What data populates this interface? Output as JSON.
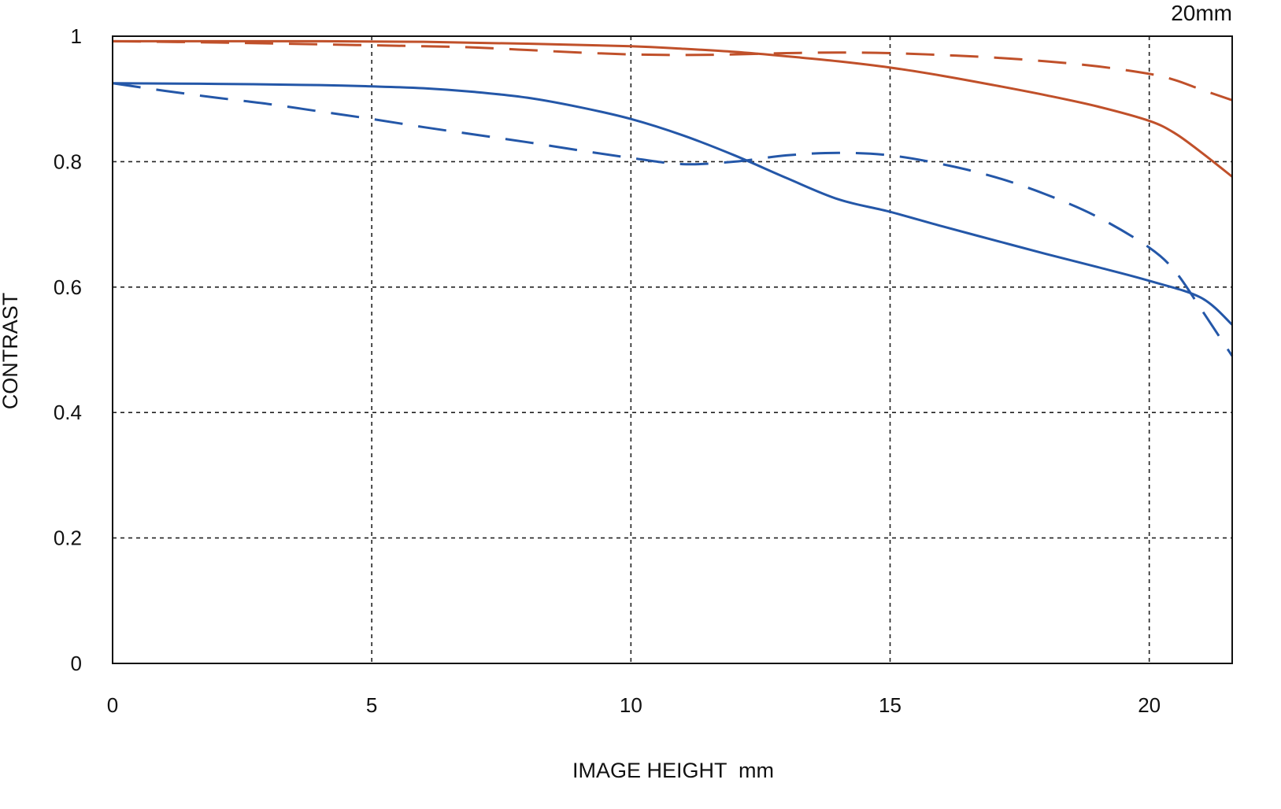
{
  "chart_data": {
    "type": "line",
    "title": "20mm",
    "xlabel": "IMAGE HEIGHT  mm",
    "ylabel": "CONTRAST",
    "xlim": [
      0,
      21.6
    ],
    "ylim": [
      0,
      1
    ],
    "x_ticks": [
      {
        "value": 0,
        "label": "0"
      },
      {
        "value": 5,
        "label": "5"
      },
      {
        "value": 10,
        "label": "10"
      },
      {
        "value": 15,
        "label": "15"
      },
      {
        "value": 20,
        "label": "20"
      }
    ],
    "y_ticks": [
      {
        "value": 0,
        "label": "0"
      },
      {
        "value": 0.2,
        "label": "0.2"
      },
      {
        "value": 0.4,
        "label": "0.4"
      },
      {
        "value": 0.6,
        "label": "0.6"
      },
      {
        "value": 0.8,
        "label": "0.8"
      },
      {
        "value": 1,
        "label": "1"
      }
    ],
    "grid": true,
    "legend": "none",
    "series": [
      {
        "color": "#c0502a",
        "style": "solid",
        "x": [
          0,
          2,
          4,
          6,
          8,
          10,
          11,
          12,
          13,
          14,
          15,
          16,
          17,
          18,
          19,
          20,
          20.5,
          21,
          21.6
        ],
        "y": [
          0.992,
          0.992,
          0.992,
          0.991,
          0.988,
          0.984,
          0.98,
          0.975,
          0.968,
          0.96,
          0.95,
          0.937,
          0.922,
          0.906,
          0.888,
          0.865,
          0.845,
          0.815,
          0.776
        ]
      },
      {
        "color": "#c0502a",
        "style": "dashed",
        "x": [
          0,
          2,
          4,
          6,
          7,
          8,
          9,
          10,
          11,
          12,
          13,
          14,
          15,
          16,
          17,
          18,
          19,
          20,
          20.5,
          21,
          21.6
        ],
        "y": [
          0.992,
          0.99,
          0.987,
          0.984,
          0.982,
          0.978,
          0.974,
          0.971,
          0.97,
          0.971,
          0.973,
          0.974,
          0.973,
          0.97,
          0.966,
          0.96,
          0.952,
          0.94,
          0.93,
          0.915,
          0.898
        ]
      },
      {
        "color": "#2457a8",
        "style": "solid",
        "x": [
          0,
          2,
          4,
          5,
          6,
          7,
          8,
          9,
          10,
          11,
          12,
          13,
          14,
          15,
          16,
          17,
          18,
          19,
          20,
          21,
          21.6
        ],
        "y": [
          0.925,
          0.924,
          0.922,
          0.92,
          0.917,
          0.911,
          0.902,
          0.887,
          0.868,
          0.842,
          0.81,
          0.774,
          0.74,
          0.72,
          0.697,
          0.675,
          0.653,
          0.632,
          0.61,
          0.583,
          0.54
        ]
      },
      {
        "color": "#2457a8",
        "style": "dashed",
        "x": [
          0,
          1,
          2,
          3,
          4,
          5,
          6,
          7,
          8,
          9,
          10,
          11,
          12,
          13,
          14,
          15,
          16,
          17,
          18,
          19,
          20,
          20.5,
          21,
          21.6
        ],
        "y": [
          0.925,
          0.913,
          0.902,
          0.892,
          0.88,
          0.868,
          0.855,
          0.843,
          0.831,
          0.818,
          0.806,
          0.796,
          0.8,
          0.81,
          0.814,
          0.81,
          0.796,
          0.776,
          0.748,
          0.712,
          0.663,
          0.625,
          0.565,
          0.49
        ]
      }
    ]
  }
}
